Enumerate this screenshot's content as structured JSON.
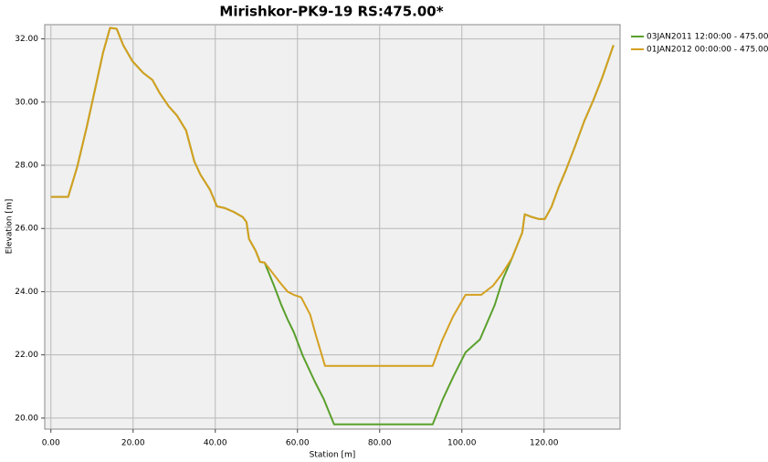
{
  "chart_data": {
    "type": "line",
    "title": "Mirishkor-PK9-19  RS:475.00*",
    "xlabel": "Station [m]",
    "ylabel": "Elevation [m]",
    "xlim": [
      -1.5,
      138.5
    ],
    "ylim": [
      19.65,
      32.45
    ],
    "xticks": [
      {
        "value": 0,
        "label": "0.00"
      },
      {
        "value": 20,
        "label": "20.00"
      },
      {
        "value": 40,
        "label": "40.00"
      },
      {
        "value": 60,
        "label": "60.00"
      },
      {
        "value": 80,
        "label": "80.00"
      },
      {
        "value": 100,
        "label": "100.00"
      },
      {
        "value": 120,
        "label": "120.00"
      }
    ],
    "yticks": [
      {
        "value": 20,
        "label": "20.00"
      },
      {
        "value": 22,
        "label": "22.00"
      },
      {
        "value": 24,
        "label": "24.00"
      },
      {
        "value": 26,
        "label": "26.00"
      },
      {
        "value": 28,
        "label": "28.00"
      },
      {
        "value": 30,
        "label": "30.00"
      },
      {
        "value": 32,
        "label": "32.00"
      }
    ],
    "grid": true,
    "legend": "right",
    "series": [
      {
        "name": "03JAN2011 12:00:00 - 475.00*",
        "color": "#5aa02c",
        "x": [
          0,
          4.2,
          6.4,
          8.7,
          10.9,
          12.7,
          14.4,
          16,
          17.6,
          19.8,
          22.4,
          24.7,
          26.4,
          28.7,
          30.7,
          32.9,
          34.9,
          36.4,
          38.7,
          40.4,
          42.2,
          44.4,
          46.7,
          47.6,
          48.2,
          49.8,
          50.9,
          52,
          54.2,
          56,
          57.6,
          59.1,
          61.3,
          64.2,
          66.4,
          68.9,
          92.9,
          95.3,
          98,
          100.9,
          104.4,
          108,
          110,
          112.2,
          114.7,
          115.3,
          117.1,
          118.7,
          120.2,
          121.8,
          123.6,
          125.3,
          127.6,
          129.8,
          132,
          134.2,
          136.9
        ],
        "values": [
          27.0,
          27.0,
          27.95,
          29.2,
          30.5,
          31.57,
          32.35,
          32.32,
          31.8,
          31.3,
          30.93,
          30.7,
          30.3,
          29.86,
          29.57,
          29.1,
          28.12,
          27.7,
          27.23,
          26.7,
          26.65,
          26.53,
          26.36,
          26.2,
          25.67,
          25.3,
          24.94,
          24.92,
          24.22,
          23.6,
          23.12,
          22.72,
          21.97,
          21.16,
          20.6,
          19.8,
          19.8,
          20.58,
          21.33,
          22.08,
          22.49,
          23.58,
          24.4,
          25.06,
          25.87,
          26.45,
          26.36,
          26.3,
          26.3,
          26.68,
          27.32,
          27.84,
          28.62,
          29.4,
          30.06,
          30.79,
          31.8
        ]
      },
      {
        "name": "01JAN2012 00:00:00 - 475.00*",
        "color": "#d4a020",
        "x": [
          0,
          4.2,
          6.4,
          8.7,
          10.9,
          12.7,
          14.4,
          16,
          17.6,
          19.8,
          22.4,
          24.7,
          26.4,
          28.7,
          30.7,
          32.9,
          34.9,
          36.4,
          38.7,
          40.4,
          42.2,
          44.4,
          46.7,
          47.6,
          48.2,
          49.8,
          50.9,
          52,
          53.6,
          55.8,
          57.6,
          59.1,
          60.9,
          63.1,
          64.4,
          66.7,
          92.9,
          95.1,
          97.8,
          100.9,
          104.7,
          107.6,
          109.8,
          112.2,
          114.7,
          115.3,
          117.1,
          118.7,
          120.2,
          121.8,
          123.6,
          125.3,
          127.6,
          129.8,
          132,
          134.2,
          136.9
        ],
        "values": [
          27.0,
          27.0,
          27.95,
          29.2,
          30.5,
          31.57,
          32.35,
          32.32,
          31.8,
          31.3,
          30.93,
          30.7,
          30.3,
          29.86,
          29.57,
          29.1,
          28.12,
          27.7,
          27.23,
          26.7,
          26.65,
          26.53,
          26.36,
          26.2,
          25.67,
          25.3,
          24.94,
          24.92,
          24.65,
          24.28,
          24.0,
          23.9,
          23.82,
          23.27,
          22.66,
          21.65,
          21.65,
          22.43,
          23.2,
          23.9,
          23.9,
          24.19,
          24.57,
          25.06,
          25.87,
          26.45,
          26.36,
          26.3,
          26.3,
          26.68,
          27.32,
          27.84,
          28.62,
          29.4,
          30.06,
          30.79,
          31.8
        ]
      }
    ]
  }
}
